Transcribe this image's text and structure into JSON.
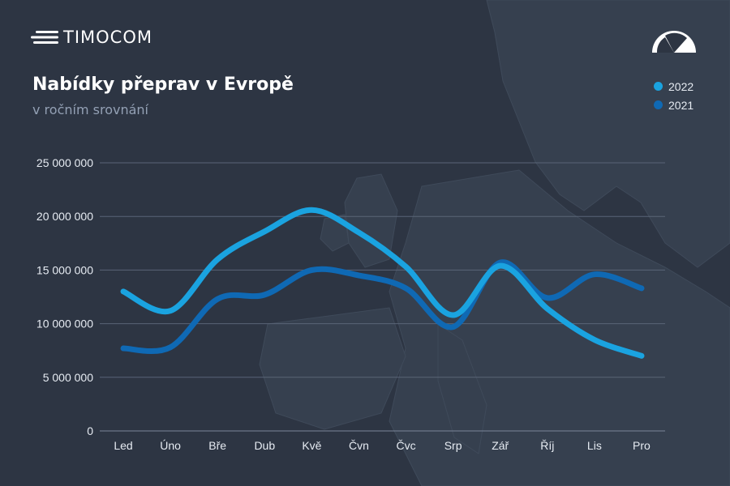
{
  "header": {
    "brand": "TIMOCOM",
    "title": "Nabídky přeprav v Evropě",
    "subtitle": "v ročním srovnání",
    "logo_icon": "timocom-speed-lines-icon",
    "corner_icon": "gauge-icon"
  },
  "colors": {
    "background": "#2d3543",
    "series_2022": "#1aa3e0",
    "series_2021": "#0f69b4",
    "grid": "#5a6577",
    "text": "#e6ebf2",
    "subtitle": "#93a0b4"
  },
  "chart_data": {
    "type": "line",
    "title": "Nabídky přeprav v Evropě",
    "subtitle": "v ročním srovnání",
    "categories": [
      "Led",
      "Úno",
      "Bře",
      "Dub",
      "Kvě",
      "Čvn",
      "Čvc",
      "Srp",
      "Zář",
      "Říj",
      "Lis",
      "Pro"
    ],
    "y_ticks": [
      0,
      5000000,
      10000000,
      15000000,
      20000000,
      25000000
    ],
    "y_tick_labels": [
      "0",
      "5 000 000",
      "10 000 000",
      "15 000 000",
      "20 000 000",
      "25 000 000"
    ],
    "ylim": [
      0,
      25000000
    ],
    "grid": true,
    "legend_position": "top-right",
    "smooth": true,
    "series": [
      {
        "name": "2022",
        "color": "#1aa3e0",
        "values": [
          13000000,
          11200000,
          16000000,
          18600000,
          20600000,
          18500000,
          15300000,
          10800000,
          15400000,
          11400000,
          8500000,
          7000000
        ]
      },
      {
        "name": "2021",
        "color": "#0f69b4",
        "values": [
          7700000,
          7800000,
          12300000,
          12700000,
          15000000,
          14500000,
          13300000,
          9700000,
          15700000,
          12400000,
          14600000,
          13300000
        ]
      }
    ]
  }
}
